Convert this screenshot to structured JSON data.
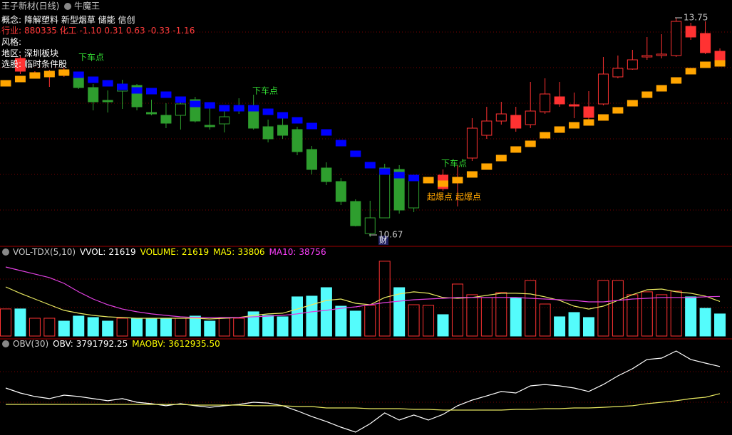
{
  "chart_data": [
    {
      "type": "candlestick",
      "title": "王子新材(日线)",
      "indicator": "牛魔王",
      "info": [
        {
          "label": "概念:",
          "text": "降解塑料 新型烟草 储能 信创"
        },
        {
          "label": "行业:",
          "text": "880335 化工 -1.10 0.31 0.63 -0.33 -1.16"
        },
        {
          "label": "风格:"
        },
        {
          "label": "地区:",
          "text": "深圳板块"
        },
        {
          "label": "选股:",
          "text": "临时条件股"
        }
      ],
      "open": [
        null,
        13.18,
        12.94,
        12.95,
        12.99,
        12.92,
        12.77,
        12.59,
        12.72,
        12.8,
        12.42,
        12.38,
        12.38,
        12.6,
        12.24,
        12.26,
        12.47,
        12.52,
        12.22,
        12.24,
        12.18,
        11.9,
        11.64,
        11.45,
        11.17,
        10.72,
        10.94,
        11.62,
        11.08,
        11.46,
        11.54,
        11.49,
        11.78,
        12.1,
        12.3,
        12.38,
        12.25,
        12.43,
        12.64,
        12.53,
        12.5,
        12.54,
        12.92,
        13.03,
        13.2,
        13.22,
        13.22,
        13.63,
        13.53,
        13.28
      ],
      "high": [
        null,
        13.22,
        13.0,
        13.02,
        13.05,
        12.95,
        12.82,
        12.73,
        12.88,
        12.82,
        12.6,
        12.55,
        12.62,
        12.64,
        12.5,
        12.5,
        12.62,
        12.67,
        12.32,
        12.37,
        12.22,
        11.95,
        11.72,
        11.5,
        11.2,
        11.18,
        11.7,
        11.68,
        11.52,
        11.5,
        11.62,
        11.68,
        12.34,
        12.5,
        12.57,
        12.5,
        12.85,
        12.9,
        12.85,
        12.7,
        12.72,
        13.2,
        13.22,
        13.3,
        13.48,
        13.52,
        13.75,
        13.68,
        13.7,
        13.32
      ],
      "low": [
        null,
        12.96,
        12.92,
        12.78,
        12.92,
        12.75,
        12.45,
        12.42,
        12.47,
        12.45,
        12.38,
        12.2,
        12.18,
        12.28,
        12.18,
        12.14,
        12.4,
        12.18,
        12.0,
        12.05,
        11.82,
        11.55,
        11.4,
        11.12,
        10.82,
        10.67,
        10.94,
        11.0,
        11.02,
        11.44,
        11.32,
        11.1,
        11.74,
        12.05,
        12.25,
        12.15,
        12.2,
        12.4,
        12.5,
        12.34,
        12.3,
        12.52,
        12.9,
        13.02,
        13.16,
        13.18,
        13.2,
        13.44,
        13.24,
        13.08
      ],
      "close": [
        null,
        13.0,
        12.96,
        12.97,
        12.96,
        12.77,
        12.57,
        12.57,
        12.82,
        12.5,
        12.4,
        12.27,
        12.54,
        12.3,
        12.22,
        12.36,
        12.49,
        12.2,
        12.05,
        12.1,
        11.87,
        11.62,
        11.45,
        11.17,
        10.83,
        10.94,
        11.64,
        11.05,
        11.46,
        11.48,
        11.35,
        11.51,
        12.2,
        12.3,
        12.4,
        12.2,
        12.44,
        12.68,
        12.54,
        12.51,
        12.35,
        12.96,
        13.04,
        13.16,
        13.22,
        13.24,
        13.7,
        13.48,
        13.26,
        13.11
      ],
      "stop_up": [
        12.83,
        12.89,
        12.94,
        12.96,
        12.98,
        null,
        null,
        null,
        null,
        null,
        null,
        null,
        null,
        null,
        null,
        null,
        null,
        null,
        null,
        null,
        null,
        null,
        null,
        null,
        null,
        null,
        null,
        null,
        null,
        11.47,
        11.42,
        11.47,
        11.55,
        11.66,
        11.78,
        11.9,
        11.98,
        12.1,
        12.18,
        12.24,
        12.28,
        12.35,
        12.45,
        12.55,
        12.67,
        12.76,
        12.87,
        13.0,
        13.09,
        13.11
      ],
      "stop_down": [
        null,
        null,
        null,
        null,
        null,
        12.95,
        12.88,
        12.83,
        12.78,
        12.73,
        12.72,
        12.67,
        12.6,
        12.54,
        12.52,
        12.48,
        12.48,
        12.48,
        12.43,
        12.38,
        12.31,
        12.23,
        12.14,
        11.99,
        11.84,
        11.68,
        11.59,
        11.54,
        11.5,
        null,
        null,
        null,
        null,
        null,
        null,
        null,
        null,
        null,
        null,
        null,
        null,
        null,
        null,
        null,
        null,
        null,
        null,
        null,
        null,
        null
      ],
      "stop_up_color": "#ffa500",
      "stop_down_color": "#0000ff",
      "up_color": "#ff3232",
      "down_color": "#2e9e2e",
      "ylim": [
        10.56,
        14.0
      ],
      "annotations": {
        "exit": [
          "下车点",
          "下车点",
          "下车点"
        ],
        "launch": [
          "起爆点",
          "起爆点"
        ],
        "finance": "财"
      }
    },
    {
      "type": "bar",
      "title": "VOL-TDX(5,10)",
      "labels": {
        "vvol": "VVOL:",
        "volume": "VOLUME:"
      },
      "values": [
        26500,
        26500,
        17400,
        17400,
        14600,
        19500,
        18100,
        14600,
        17400,
        17400,
        17400,
        17400,
        17400,
        19500,
        14600,
        17400,
        17400,
        23700,
        20200,
        18800,
        38300,
        39000,
        47300,
        29200,
        24400,
        30000,
        73100,
        47300,
        30600,
        30000,
        20900,
        50800,
        40400,
        37600,
        42500,
        37600,
        54300,
        31300,
        18800,
        23000,
        18100,
        54300,
        54300,
        40400,
        43200,
        40400,
        43900,
        38300,
        27100,
        21619
      ],
      "up_color": "#ff3232",
      "down_color": "#54fcfc",
      "series": [
        {
          "name": "MA5:",
          "color": "#e8e860",
          "values": [
            48000,
            41800,
            36200,
            30600,
            25100,
            22300,
            20200,
            18800,
            18100,
            17400,
            17400,
            17400,
            17400,
            17400,
            16700,
            17400,
            18100,
            20200,
            21600,
            22300,
            26400,
            30600,
            34800,
            36200,
            32000,
            30600,
            37600,
            41100,
            43200,
            41800,
            37600,
            36900,
            37600,
            39700,
            41800,
            41800,
            41100,
            38300,
            34800,
            29200,
            26400,
            29200,
            34800,
            40400,
            45200,
            45900,
            43200,
            41800,
            39000,
            33806
          ]
        },
        {
          "name": "MA10:",
          "color": "#e040e0",
          "values": [
            67500,
            64000,
            60600,
            57100,
            51500,
            43200,
            36200,
            30600,
            26400,
            23700,
            21600,
            20200,
            18800,
            18100,
            18100,
            18100,
            18100,
            18800,
            19500,
            20200,
            21600,
            23700,
            25100,
            27100,
            28500,
            30600,
            32700,
            34100,
            35500,
            36200,
            36900,
            37600,
            37600,
            37600,
            37600,
            37600,
            36900,
            36200,
            35500,
            34800,
            33400,
            33400,
            34800,
            36200,
            36900,
            37600,
            37600,
            37600,
            38300,
            38756
          ]
        }
      ],
      "ylim": [
        0,
        80000
      ]
    },
    {
      "type": "line",
      "title": "OBV(30)",
      "series": [
        {
          "name": "OBV:",
          "color": "#ffffff",
          "values": [
            3650000,
            3617000,
            3594000,
            3580000,
            3603000,
            3594000,
            3580000,
            3566000,
            3580000,
            3556000,
            3547000,
            3533000,
            3547000,
            3533000,
            3523000,
            3533000,
            3542000,
            3556000,
            3551000,
            3533000,
            3500000,
            3462000,
            3429000,
            3392000,
            3359000,
            3415000,
            3486000,
            3439000,
            3472000,
            3439000,
            3476000,
            3533000,
            3570000,
            3598000,
            3627000,
            3617000,
            3664000,
            3673000,
            3664000,
            3650000,
            3627000,
            3673000,
            3730000,
            3777000,
            3838000,
            3847000,
            3894000,
            3838000,
            3814000,
            3791792.25
          ]
        },
        {
          "name": "MAOBV:",
          "color": "#e8e860",
          "current_label": "3612935.50",
          "values": [
            3542000,
            3542000,
            3542000,
            3542000,
            3542000,
            3542000,
            3542000,
            3542000,
            3542000,
            3542000,
            3542000,
            3542000,
            3542000,
            3537400,
            3537400,
            3537400,
            3537400,
            3533000,
            3533000,
            3533000,
            3528000,
            3528000,
            3518600,
            3518600,
            3518600,
            3514000,
            3514000,
            3514000,
            3509300,
            3509300,
            3504600,
            3504600,
            3504600,
            3504600,
            3504600,
            3509300,
            3509300,
            3514000,
            3514000,
            3518600,
            3518600,
            3523000,
            3528000,
            3533000,
            3547000,
            3556000,
            3566000,
            3580000,
            3589000,
            3612935.5
          ]
        }
      ],
      "ylim": [
        3345000,
        3955000
      ]
    }
  ]
}
